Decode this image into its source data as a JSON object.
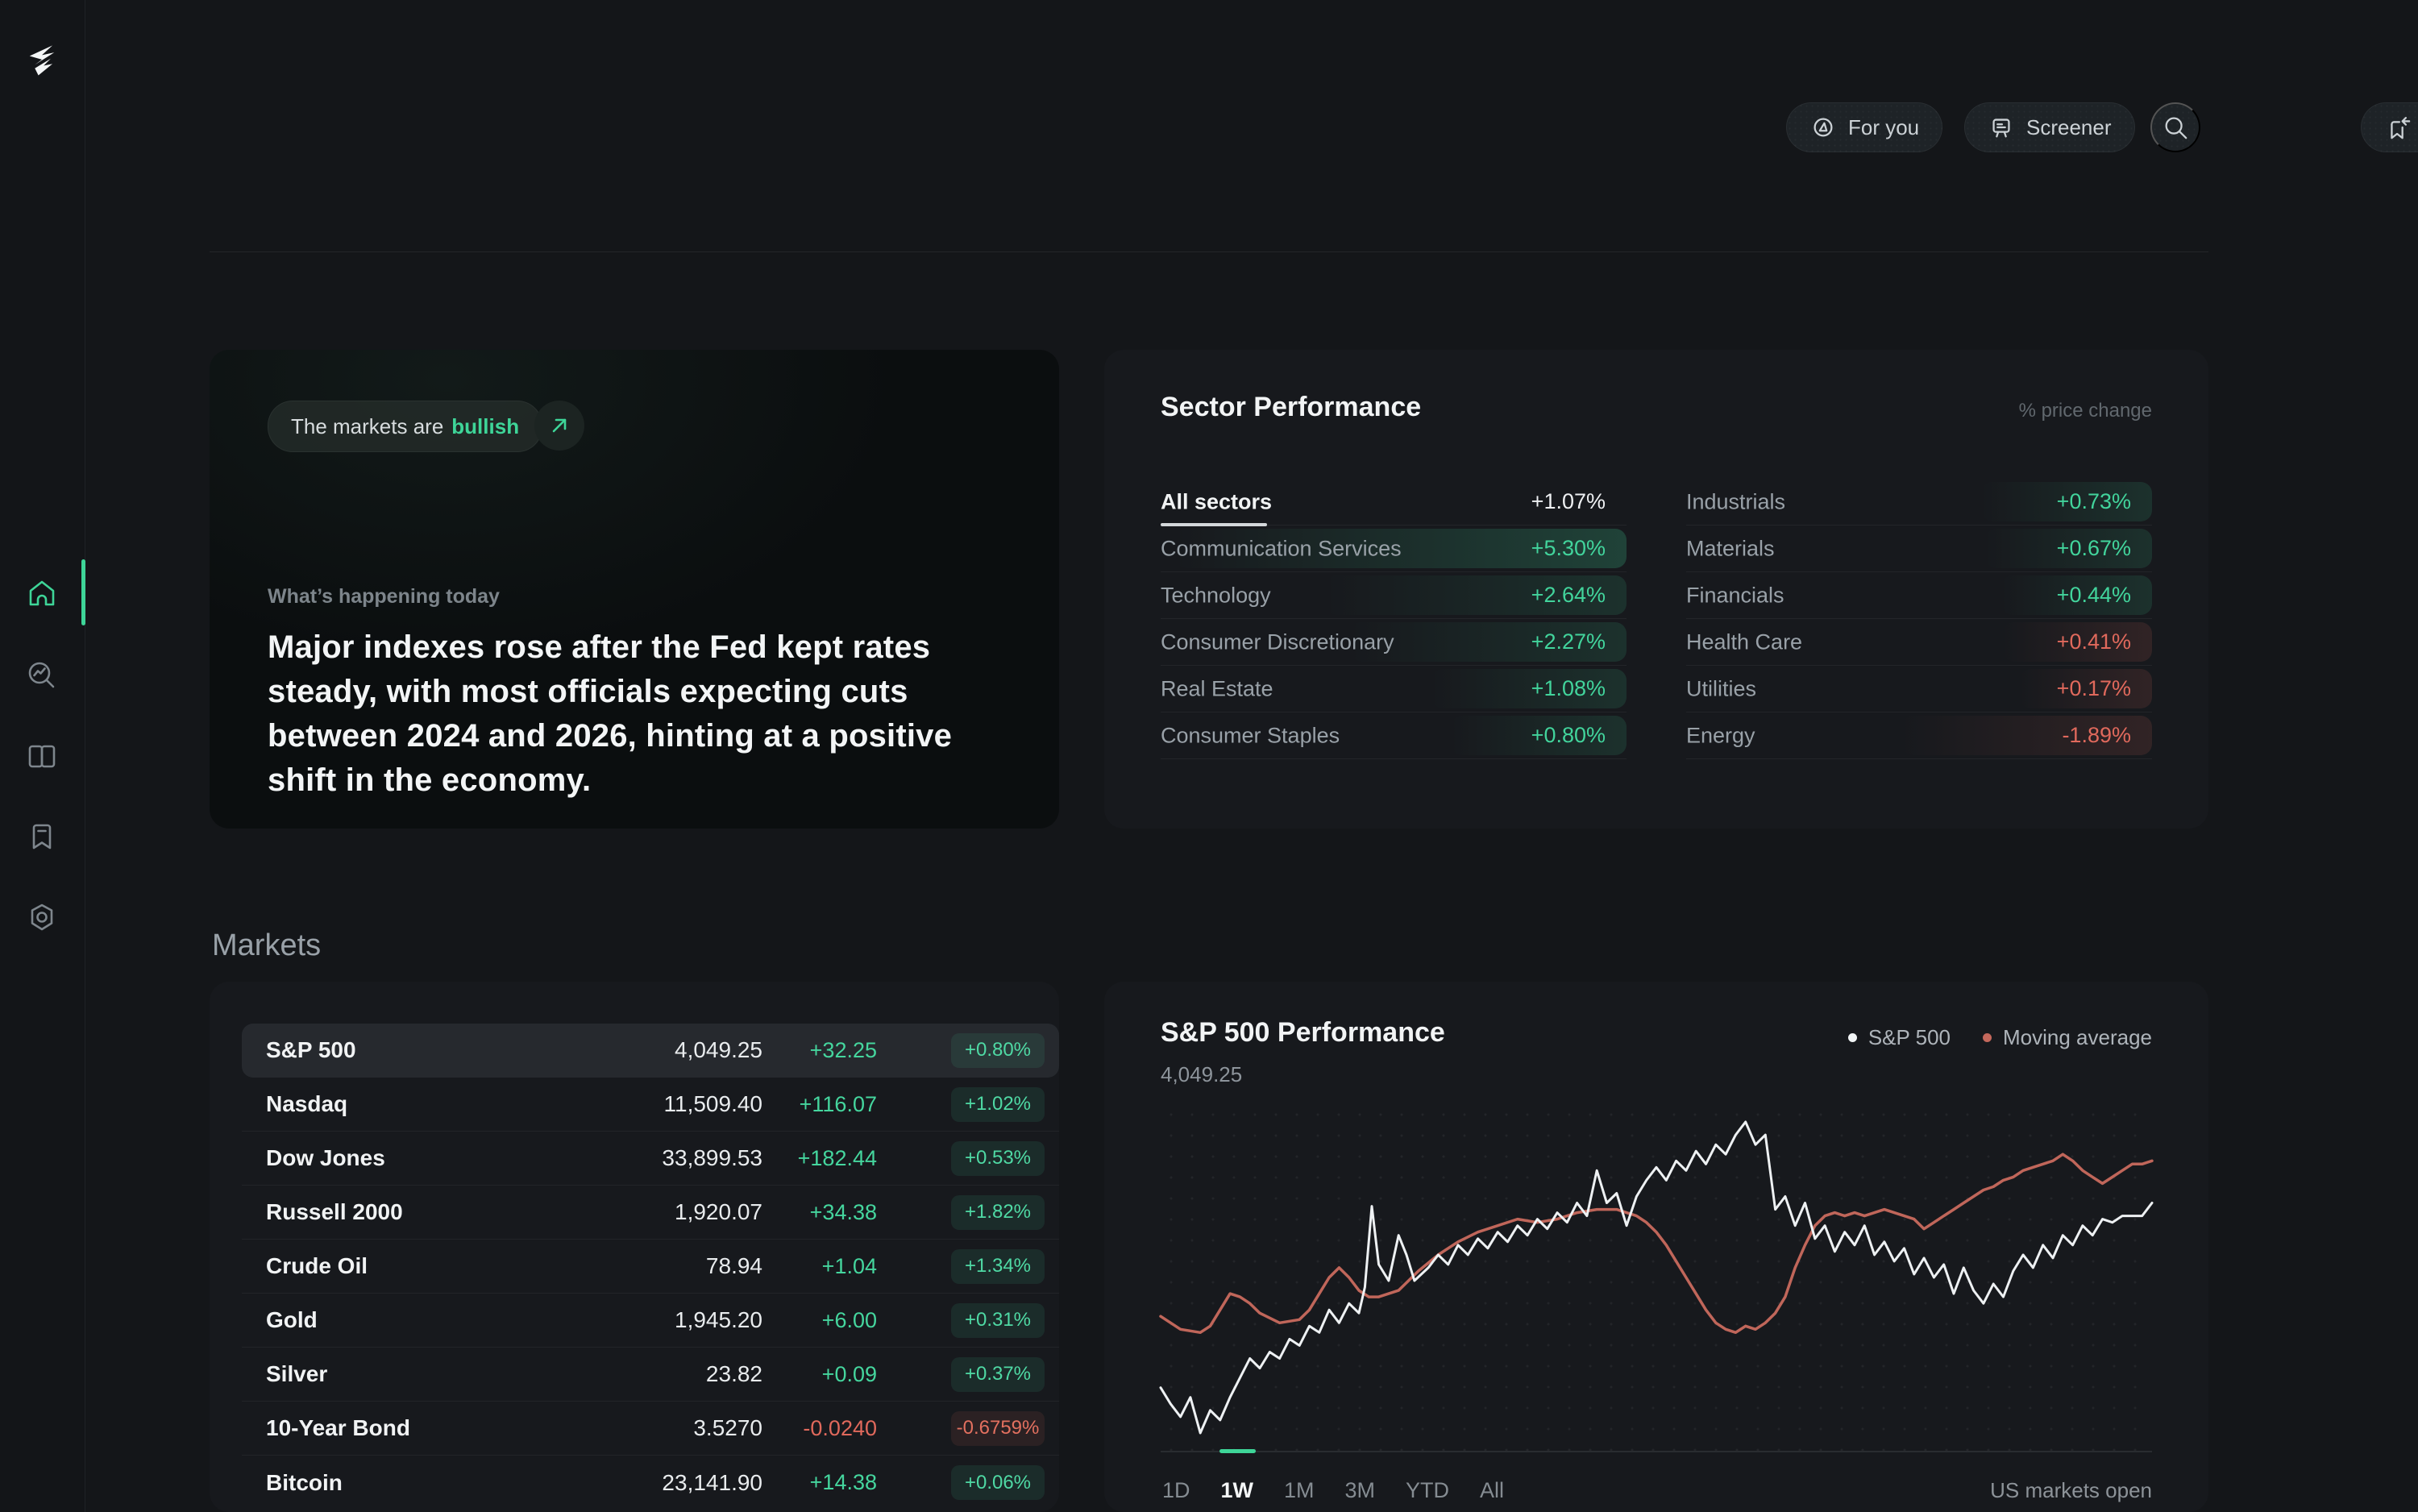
{
  "colors": {
    "accent_teal": "#3ed598",
    "green": "#45d69e",
    "red": "#e0695c",
    "chart_white": "#eef1f3",
    "chart_salmon": "#c0665a"
  },
  "sidebar": {
    "icons": [
      "logo",
      "home-icon",
      "market-search-icon",
      "book-icon",
      "bookmark-icon",
      "hexagon-settings-icon"
    ],
    "active_item": "home"
  },
  "topbar": {
    "for_you_label": "For you",
    "screener_label": "Screener",
    "icons": [
      "compass-icon",
      "screener-board-icon",
      "search-icon",
      "bookmark-arrow-icon"
    ]
  },
  "hero": {
    "pill_prefix": "The markets are",
    "pill_sentiment": "bullish",
    "eyebrow": "What’s happening today",
    "headline": "Major indexes rose after the Fed kept rates steady, with most officials expecting cuts between 2024 and 2026, hinting at a positive shift in the economy."
  },
  "sectors": {
    "title": "Sector Performance",
    "note": "% price change",
    "all": {
      "label": "All sectors",
      "value": "+1.07%"
    },
    "left": [
      {
        "label": "Communication Services",
        "value": "+5.30%",
        "pct": 5.3,
        "tone": "green"
      },
      {
        "label": "Technology",
        "value": "+2.64%",
        "pct": 2.64,
        "tone": "green"
      },
      {
        "label": "Consumer Discretionary",
        "value": "+2.27%",
        "pct": 2.27,
        "tone": "green"
      },
      {
        "label": "Real Estate",
        "value": "+1.08%",
        "pct": 1.08,
        "tone": "green"
      },
      {
        "label": "Consumer Staples",
        "value": "+0.80%",
        "pct": 0.8,
        "tone": "green"
      }
    ],
    "right": [
      {
        "label": "Industrials",
        "value": "+0.73%",
        "pct": 0.73,
        "tone": "green"
      },
      {
        "label": "Materials",
        "value": "+0.67%",
        "pct": 0.67,
        "tone": "green"
      },
      {
        "label": "Financials",
        "value": "+0.44%",
        "pct": 0.44,
        "tone": "green"
      },
      {
        "label": "Health Care",
        "value": "+0.41%",
        "pct": 0.41,
        "tone": "red"
      },
      {
        "label": "Utilities",
        "value": "+0.17%",
        "pct": 0.17,
        "tone": "red"
      },
      {
        "label": "Energy",
        "value": "-1.89%",
        "pct": 1.89,
        "tone": "red"
      }
    ]
  },
  "markets": {
    "heading": "Markets",
    "rows": [
      {
        "name": "S&P 500",
        "value": "4,049.25",
        "change": "+32.25",
        "change_pct": "+0.80%",
        "tone": "green",
        "selected": true
      },
      {
        "name": "Nasdaq",
        "value": "11,509.40",
        "change": "+116.07",
        "change_pct": "+1.02%",
        "tone": "green",
        "selected": false
      },
      {
        "name": "Dow Jones",
        "value": "33,899.53",
        "change": "+182.44",
        "change_pct": "+0.53%",
        "tone": "green",
        "selected": false
      },
      {
        "name": "Russell 2000",
        "value": "1,920.07",
        "change": "+34.38",
        "change_pct": "+1.82%",
        "tone": "green",
        "selected": false
      },
      {
        "name": "Crude Oil",
        "value": "78.94",
        "change": "+1.04",
        "change_pct": "+1.34%",
        "tone": "green",
        "selected": false
      },
      {
        "name": "Gold",
        "value": "1,945.20",
        "change": "+6.00",
        "change_pct": "+0.31%",
        "tone": "green",
        "selected": false
      },
      {
        "name": "Silver",
        "value": "23.82",
        "change": "+0.09",
        "change_pct": "+0.37%",
        "tone": "green",
        "selected": false
      },
      {
        "name": "10-Year Bond",
        "value": "3.5270",
        "change": "-0.0240",
        "change_pct": "-0.6759%",
        "tone": "red",
        "selected": false
      },
      {
        "name": "Bitcoin",
        "value": "23,141.90",
        "change": "+14.38",
        "change_pct": "+0.06%",
        "tone": "green",
        "selected": false
      }
    ]
  },
  "chart": {
    "title": "S&P 500 Performance",
    "current_value": "4,049.25",
    "legend": [
      {
        "label": "S&P 500",
        "color": "#f2f5f6"
      },
      {
        "label": "Moving average",
        "color": "#c4685c"
      }
    ],
    "tabs": [
      "1D",
      "1W",
      "1M",
      "3M",
      "YTD",
      "All"
    ],
    "active_tab": "1W",
    "status": "US markets open"
  },
  "chart_data": {
    "type": "line",
    "title": "S&P 500 Performance",
    "x_range": [
      0,
      100
    ],
    "y_range": [
      0,
      100
    ],
    "grid": "dotted",
    "legend_position": "top-right",
    "series": [
      {
        "name": "S&P 500",
        "color": "#eef1f3",
        "points": [
          [
            0,
            16
          ],
          [
            1,
            11
          ],
          [
            2,
            7
          ],
          [
            3,
            13
          ],
          [
            4,
            2
          ],
          [
            5,
            9
          ],
          [
            6,
            6
          ],
          [
            7,
            13
          ],
          [
            8,
            19
          ],
          [
            9,
            25
          ],
          [
            10,
            22
          ],
          [
            11,
            27
          ],
          [
            12,
            25
          ],
          [
            13,
            31
          ],
          [
            14,
            29
          ],
          [
            15,
            35
          ],
          [
            16,
            33
          ],
          [
            17,
            40
          ],
          [
            18,
            36
          ],
          [
            19,
            42
          ],
          [
            20,
            39
          ],
          [
            20.6,
            47
          ],
          [
            21.3,
            72
          ],
          [
            22,
            54
          ],
          [
            23,
            49
          ],
          [
            24,
            63
          ],
          [
            24.8,
            57
          ],
          [
            25.6,
            49
          ],
          [
            27,
            53
          ],
          [
            28,
            57
          ],
          [
            29,
            54
          ],
          [
            30,
            60
          ],
          [
            31,
            57
          ],
          [
            32,
            62
          ],
          [
            33,
            59
          ],
          [
            34,
            64
          ],
          [
            35,
            61
          ],
          [
            36,
            66
          ],
          [
            37,
            63
          ],
          [
            38,
            68
          ],
          [
            39,
            65
          ],
          [
            40,
            70
          ],
          [
            41,
            67
          ],
          [
            42,
            73
          ],
          [
            43,
            69
          ],
          [
            44,
            83
          ],
          [
            45,
            73
          ],
          [
            46,
            76
          ],
          [
            47,
            66
          ],
          [
            48,
            75
          ],
          [
            49,
            80
          ],
          [
            50,
            84
          ],
          [
            51,
            80
          ],
          [
            52,
            86
          ],
          [
            53,
            83
          ],
          [
            54,
            89
          ],
          [
            55,
            85
          ],
          [
            56,
            91
          ],
          [
            57,
            88
          ],
          [
            58,
            94
          ],
          [
            59,
            98
          ],
          [
            60,
            91
          ],
          [
            61,
            94
          ],
          [
            62,
            71
          ],
          [
            63,
            75
          ],
          [
            64,
            66
          ],
          [
            65,
            73
          ],
          [
            66,
            62
          ],
          [
            67,
            66
          ],
          [
            68,
            58
          ],
          [
            69,
            64
          ],
          [
            70,
            60
          ],
          [
            71,
            66
          ],
          [
            72,
            57
          ],
          [
            73,
            61
          ],
          [
            74,
            55
          ],
          [
            75,
            59
          ],
          [
            76,
            51
          ],
          [
            77,
            56
          ],
          [
            78,
            50
          ],
          [
            79,
            54
          ],
          [
            80,
            45
          ],
          [
            81,
            53
          ],
          [
            82,
            46
          ],
          [
            83,
            42
          ],
          [
            84,
            48
          ],
          [
            85,
            44
          ],
          [
            86,
            52
          ],
          [
            87,
            57
          ],
          [
            88,
            53
          ],
          [
            89,
            60
          ],
          [
            90,
            56
          ],
          [
            91,
            63
          ],
          [
            92,
            60
          ],
          [
            93,
            66
          ],
          [
            94,
            63
          ],
          [
            95,
            68
          ],
          [
            96,
            67
          ],
          [
            97,
            69
          ],
          [
            98,
            69
          ],
          [
            99,
            69
          ],
          [
            100,
            73
          ]
        ]
      },
      {
        "name": "Moving average",
        "color": "#c0665a",
        "points": [
          [
            0,
            38
          ],
          [
            2,
            34
          ],
          [
            4,
            33
          ],
          [
            5,
            35
          ],
          [
            6,
            40
          ],
          [
            7,
            45
          ],
          [
            8,
            44
          ],
          [
            9,
            42
          ],
          [
            10,
            39
          ],
          [
            12,
            36
          ],
          [
            14,
            37
          ],
          [
            15,
            40
          ],
          [
            16,
            45
          ],
          [
            17,
            50
          ],
          [
            18,
            53
          ],
          [
            19,
            50
          ],
          [
            20,
            46
          ],
          [
            21,
            44
          ],
          [
            22,
            44
          ],
          [
            24,
            46
          ],
          [
            26,
            52
          ],
          [
            28,
            57
          ],
          [
            30,
            61
          ],
          [
            32,
            64
          ],
          [
            34,
            66
          ],
          [
            36,
            68
          ],
          [
            38,
            67
          ],
          [
            40,
            68
          ],
          [
            42,
            70
          ],
          [
            44,
            71
          ],
          [
            46,
            71
          ],
          [
            48,
            69
          ],
          [
            49,
            67
          ],
          [
            50,
            64
          ],
          [
            51,
            60
          ],
          [
            52,
            55
          ],
          [
            53,
            50
          ],
          [
            54,
            45
          ],
          [
            55,
            40
          ],
          [
            56,
            36
          ],
          [
            57,
            34
          ],
          [
            58,
            33
          ],
          [
            59,
            35
          ],
          [
            60,
            34
          ],
          [
            61,
            36
          ],
          [
            62,
            39
          ],
          [
            63,
            44
          ],
          [
            64,
            53
          ],
          [
            65,
            60
          ],
          [
            66,
            66
          ],
          [
            67,
            69
          ],
          [
            68,
            70
          ],
          [
            69,
            69
          ],
          [
            70,
            70
          ],
          [
            71,
            69
          ],
          [
            72,
            70
          ],
          [
            73,
            71
          ],
          [
            74,
            70
          ],
          [
            76,
            68
          ],
          [
            77,
            65
          ],
          [
            78,
            67
          ],
          [
            79,
            69
          ],
          [
            80,
            71
          ],
          [
            81,
            73
          ],
          [
            82,
            75
          ],
          [
            83,
            77
          ],
          [
            84,
            78
          ],
          [
            85,
            80
          ],
          [
            86,
            81
          ],
          [
            87,
            83
          ],
          [
            88,
            84
          ],
          [
            89,
            85
          ],
          [
            90,
            86
          ],
          [
            91,
            88
          ],
          [
            92,
            86
          ],
          [
            93,
            83
          ],
          [
            94,
            81
          ],
          [
            95,
            79
          ],
          [
            96,
            81
          ],
          [
            97,
            83
          ],
          [
            98,
            85
          ],
          [
            99,
            85
          ],
          [
            100,
            86
          ]
        ]
      }
    ]
  }
}
